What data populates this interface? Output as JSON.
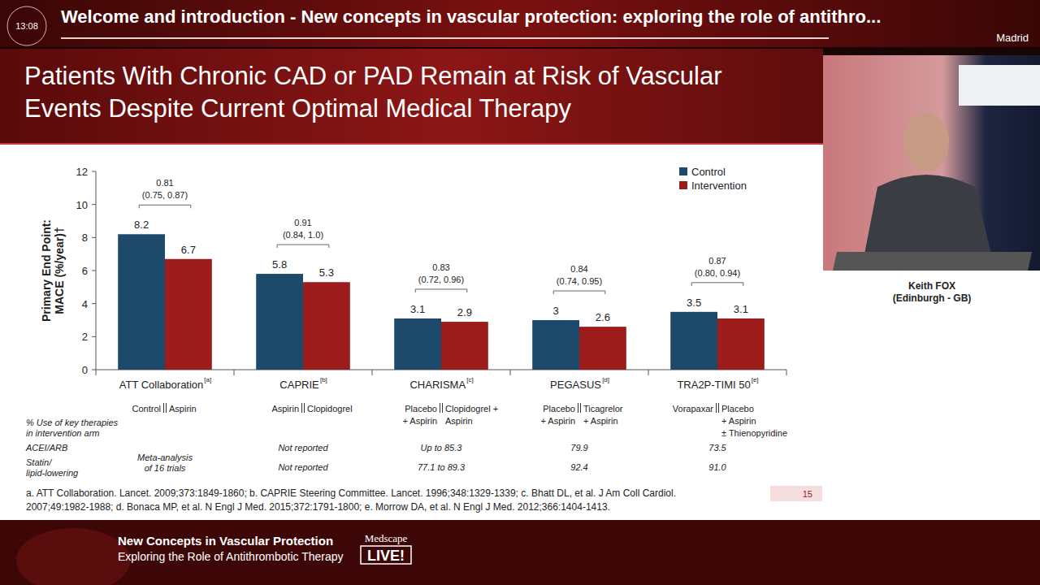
{
  "header": {
    "time": "13:08",
    "title": "Welcome and introduction - New concepts in vascular protection: exploring the role of antithro...",
    "location": "Madrid"
  },
  "slide": {
    "title_lines": [
      "Patients With Chronic CAD or PAD Remain at Risk of Vascular",
      "Events Despite Current Optimal Medical Therapy"
    ],
    "page_number": "15",
    "references": [
      "a. ATT Collaboration. Lancet. 2009;373:1849-1860; b. CAPRIE Steering Committee. Lancet. 1996;348:1329-1339; c. Bhatt DL, et al. J Am Coll Cardiol.",
      "2007;49:1982-1988; d. Bonaca MP, et al. N Engl J Med. 2015;372:1791-1800; e. Morrow DA, et al. N Engl J Med. 2012;366:1404-1413."
    ]
  },
  "speaker": {
    "name": "Keith FOX",
    "affiliation": "(Edinburgh - GB)"
  },
  "footer": {
    "line1": "New Concepts in Vascular Protection",
    "line2": "Exploring the Role of Antithrombotic Therapy",
    "brand": "Medscape",
    "brand_badge": "LIVE!"
  },
  "chart_data": {
    "type": "bar",
    "y_label": [
      "Primary End Point:",
      "MACE (%/year)†"
    ],
    "categories": [
      "ATT Collaboration",
      "CAPRIE",
      "CHARISMA",
      "PEGASUS",
      "TRA2P-TIMI 50"
    ],
    "category_refs": [
      "[a]",
      "[b]",
      "[c]",
      "[d]",
      "[e]"
    ],
    "series": [
      {
        "name": "Control",
        "color": "#1d4a6b",
        "values": [
          8.2,
          5.8,
          3.1,
          3.0,
          3.5
        ]
      },
      {
        "name": "Intervention",
        "color": "#9c1c1c",
        "values": [
          6.7,
          5.3,
          2.9,
          2.6,
          3.1
        ]
      }
    ],
    "ylim": [
      0,
      12
    ],
    "yticks": [
      0,
      2,
      4,
      6,
      8,
      10,
      12
    ],
    "grid": false,
    "legend": "top-right",
    "data_labels": true,
    "hazard_ratios": [
      0.81,
      0.91,
      0.83,
      0.84,
      0.87
    ],
    "hazard_ratio_cis": [
      "(0.75, 0.87)",
      "(0.84, 1.0)",
      "(0.72, 0.96)",
      "(0.74, 0.95)",
      "(0.80, 0.94)"
    ],
    "comparisons": [
      {
        "left": [
          "Control"
        ],
        "right": [
          "Aspirin"
        ]
      },
      {
        "left": [
          "Aspirin"
        ],
        "right": [
          "Clopidogrel"
        ]
      },
      {
        "left": [
          "Placebo",
          "+ Aspirin"
        ],
        "right": [
          "Clopidogrel +",
          "Aspirin"
        ]
      },
      {
        "left": [
          "Placebo",
          "+ Aspirin"
        ],
        "right": [
          "Ticagrelor",
          "+ Aspirin"
        ]
      },
      {
        "left": [
          "Vorapaxar"
        ],
        "right": [
          "Placebo",
          "+ Aspirin",
          "± Thienopyridine"
        ]
      }
    ],
    "table": {
      "header_lines": [
        "% Use of key therapies",
        "in intervention arm"
      ],
      "merged_cell_lines": [
        "Meta-analysis",
        "of 16 trials"
      ],
      "rows": [
        {
          "label_lines": [
            "ACEI/ARB"
          ],
          "cells": [
            null,
            "Not reported",
            "Up to 85.3",
            "79.9",
            "73.5"
          ]
        },
        {
          "label_lines": [
            "Statin/",
            "lipid-lowering"
          ],
          "cells": [
            null,
            "Not reported",
            "77.1 to 89.3",
            "92.4",
            "91.0"
          ]
        }
      ]
    }
  }
}
